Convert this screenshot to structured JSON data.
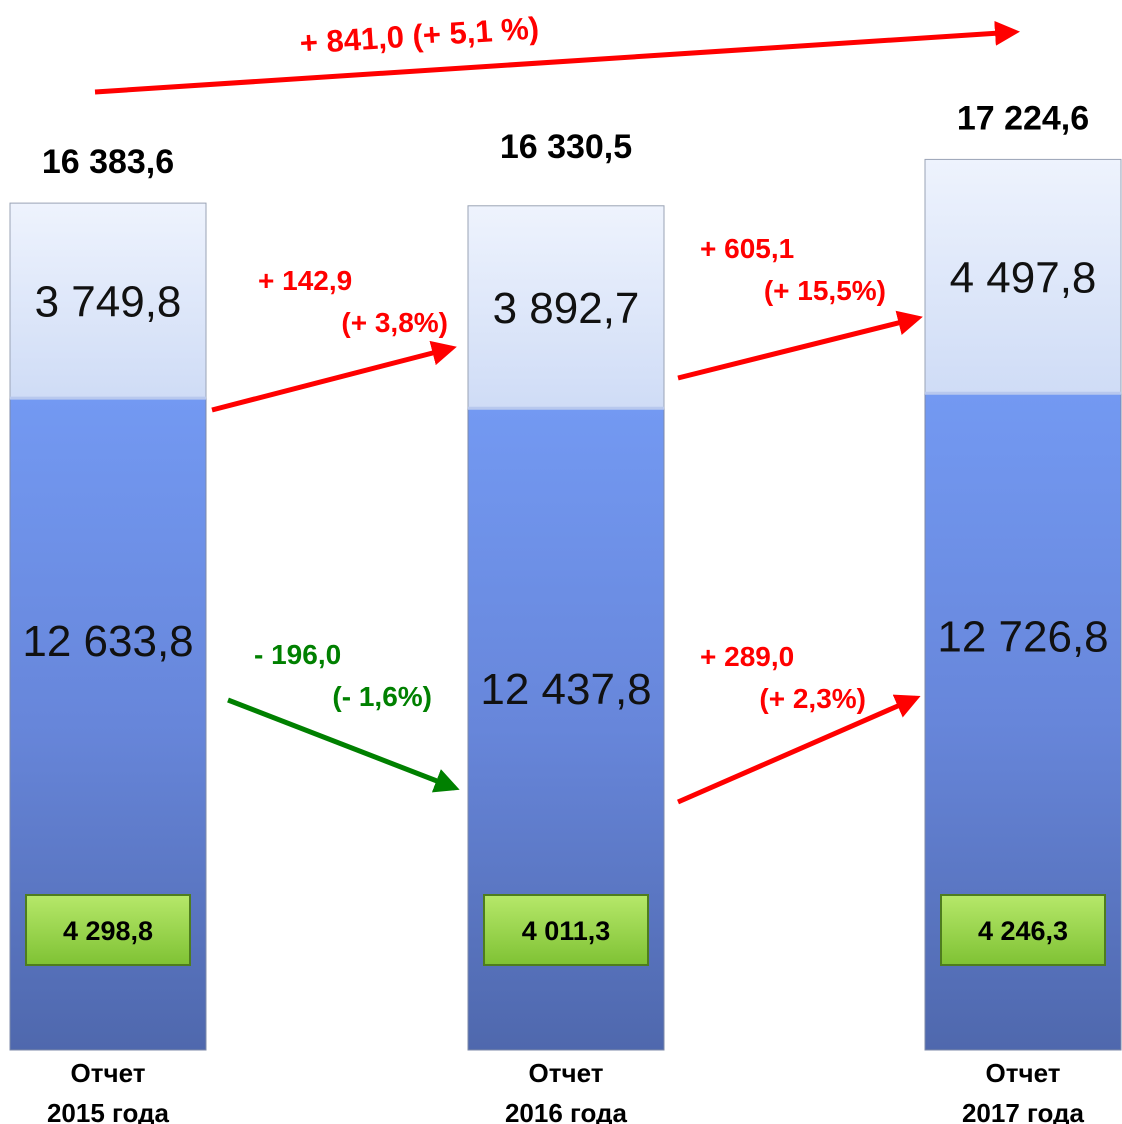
{
  "chart_data": {
    "type": "bar",
    "stacked": true,
    "title": "",
    "categories": [
      "Отчет\n2015 года",
      "Отчет\n2016 года",
      "Отчет\n2017 года"
    ],
    "totals": [
      16383.6,
      16330.5,
      17224.6
    ],
    "total_labels": [
      "16 383,6",
      "16 330,5",
      "17 224,6"
    ],
    "series": [
      {
        "values": [
          12633.8,
          12437.8,
          12726.8
        ],
        "labels": [
          "12 633,8",
          "12 437,8",
          "12 726,8"
        ]
      },
      {
        "values": [
          3749.8,
          3892.7,
          4497.8
        ],
        "labels": [
          "3 749,8",
          "3 892,7",
          "4 497,8"
        ]
      }
    ],
    "inner_values": [
      4298.8,
      4011.3,
      4246.3
    ],
    "inner_labels": [
      "4 298,8",
      "4 011,3",
      "4 246,3"
    ],
    "annotations": {
      "top_changes": [
        {
          "from": 0,
          "to": 1,
          "lines": [
            "+ 142,9",
            "(+ 3,8%)"
          ],
          "color": "#ff0000"
        },
        {
          "from": 1,
          "to": 2,
          "lines": [
            "+ 605,1",
            "(+ 15,5%)"
          ],
          "color": "#ff0000"
        }
      ],
      "bottom_changes": [
        {
          "from": 0,
          "to": 1,
          "lines": [
            "- 196,0",
            "(- 1,6%)"
          ],
          "color": "#008000"
        },
        {
          "from": 1,
          "to": 2,
          "lines": [
            "+ 289,0",
            "(+ 2,3%)"
          ],
          "color": "#ff0000"
        }
      ],
      "overall_change": {
        "text": "+ 841,0 (+ 5,1 %)",
        "color": "#ff0000"
      }
    },
    "colors": {
      "top_segment": "#dde6fb",
      "bottom_segment": "#6f8fe0",
      "inner_box": "#8fd13f"
    },
    "legend": "none",
    "grid": false
  }
}
